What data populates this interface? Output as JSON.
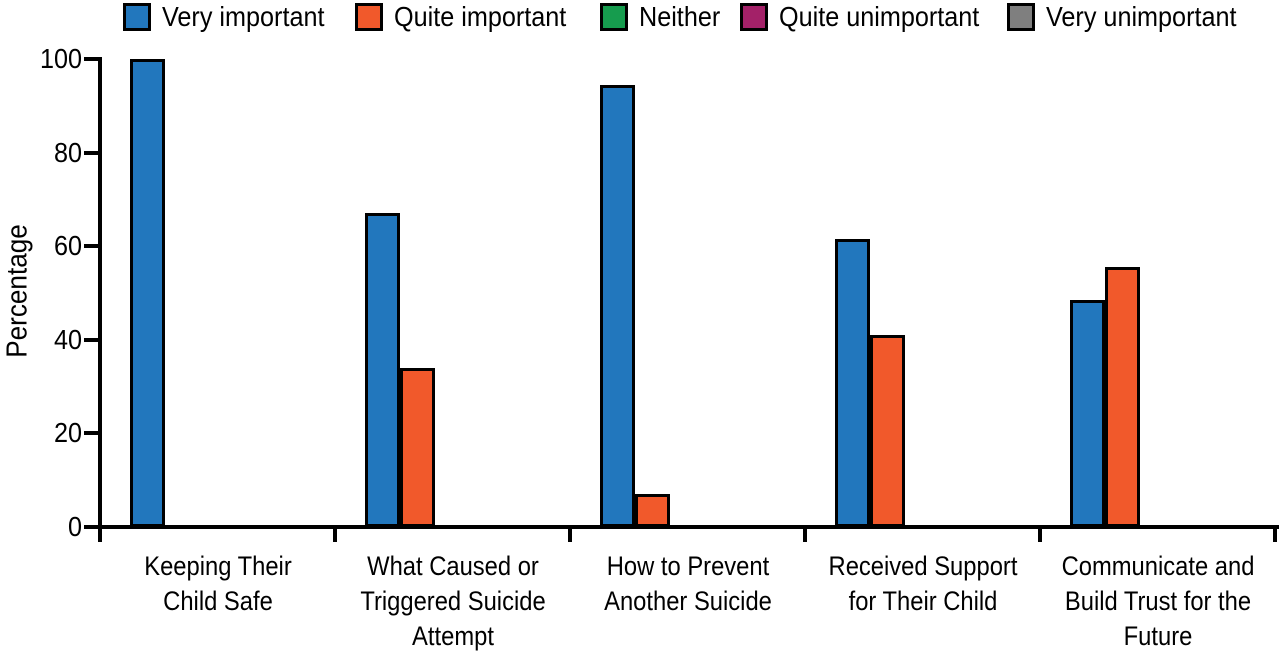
{
  "figure": {
    "background": "#ffffff",
    "text_color": "#000000"
  },
  "chart_data": {
    "type": "bar",
    "title": "",
    "xlabel": "",
    "ylabel": "Percentage",
    "ylim": [
      0,
      100
    ],
    "yticks": [
      0,
      20,
      40,
      60,
      80,
      100
    ],
    "ytick_labels": [
      "0",
      "20",
      "40",
      "60",
      "80",
      "100"
    ],
    "grid": false,
    "legend_position": "top",
    "axis_color": "#000000",
    "bar_outline_color": "#000000",
    "categories": [
      {
        "label": "Keeping Their Child Safe",
        "lines": [
          "Keeping Their",
          "Child Safe"
        ]
      },
      {
        "label": "What Caused or Triggered Suicide Attempt",
        "lines": [
          "What Caused or",
          "Triggered Suicide",
          "Attempt"
        ]
      },
      {
        "label": "How to Prevent Another Suicide",
        "lines": [
          "How to Prevent",
          "Another Suicide"
        ]
      },
      {
        "label": "Received Support for Their Child",
        "lines": [
          "Received Support",
          "for Their Child"
        ]
      },
      {
        "label": "Communicate and Build Trust for the Future",
        "lines": [
          "Communicate and",
          "Build Trust for the",
          "Future"
        ]
      }
    ],
    "series": [
      {
        "name": "Very important",
        "color": "#2277BD",
        "values": [
          100,
          67,
          94.5,
          61.5,
          48.5
        ]
      },
      {
        "name": "Quite important",
        "color": "#F1592B",
        "values": [
          0,
          34,
          7,
          41,
          55.5
        ]
      },
      {
        "name": "Neither",
        "color": "#169C4E",
        "values": [
          0,
          0,
          0,
          0,
          0
        ]
      },
      {
        "name": "Quite unimportant",
        "color": "#A32168",
        "values": [
          0,
          0,
          0,
          0,
          0
        ]
      },
      {
        "name": "Very unimportant",
        "color": "#7F7F7F",
        "values": [
          0,
          0,
          0,
          0,
          0
        ]
      }
    ]
  }
}
